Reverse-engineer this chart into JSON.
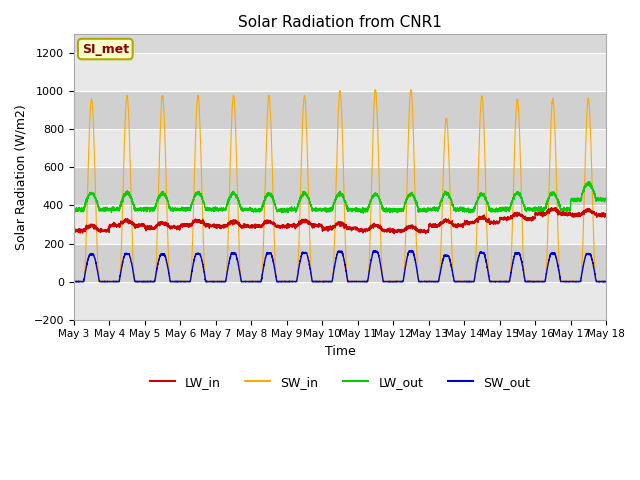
{
  "title": "Solar Radiation from CNR1",
  "xlabel": "Time",
  "ylabel": "Solar Radiation (W/m2)",
  "ylim": [
    -200,
    1300
  ],
  "yticks": [
    -200,
    0,
    200,
    400,
    600,
    800,
    1000,
    1200
  ],
  "background_color": "#ffffff",
  "plot_bg_color": "#d8d8d8",
  "grid_color": "#ffffff",
  "annotation_text": "SI_met",
  "annotation_bg": "#ffffcc",
  "annotation_border": "#aaaa00",
  "annotation_text_color": "#880000",
  "series": {
    "LW_in": {
      "color": "#cc0000",
      "label": "LW_in"
    },
    "SW_in": {
      "color": "#ffaa00",
      "label": "SW_in"
    },
    "LW_out": {
      "color": "#00cc00",
      "label": "LW_out"
    },
    "SW_out": {
      "color": "#0000cc",
      "label": "SW_out"
    }
  },
  "n_days": 15,
  "start_day": 3,
  "points_per_day": 288,
  "sw_in_peaks": [
    960,
    975,
    975,
    975,
    975,
    975,
    975,
    1000,
    1005,
    1005,
    855,
    975,
    960,
    960,
    960
  ],
  "sw_out_peaks": [
    155,
    158,
    155,
    158,
    160,
    162,
    165,
    170,
    172,
    172,
    148,
    165,
    162,
    160,
    158
  ],
  "lw_in_bases": [
    268,
    295,
    283,
    295,
    290,
    290,
    295,
    280,
    270,
    265,
    295,
    310,
    330,
    355,
    350
  ],
  "lw_out_bases": [
    378,
    380,
    380,
    380,
    380,
    375,
    378,
    378,
    375,
    375,
    380,
    375,
    380,
    380,
    430
  ]
}
